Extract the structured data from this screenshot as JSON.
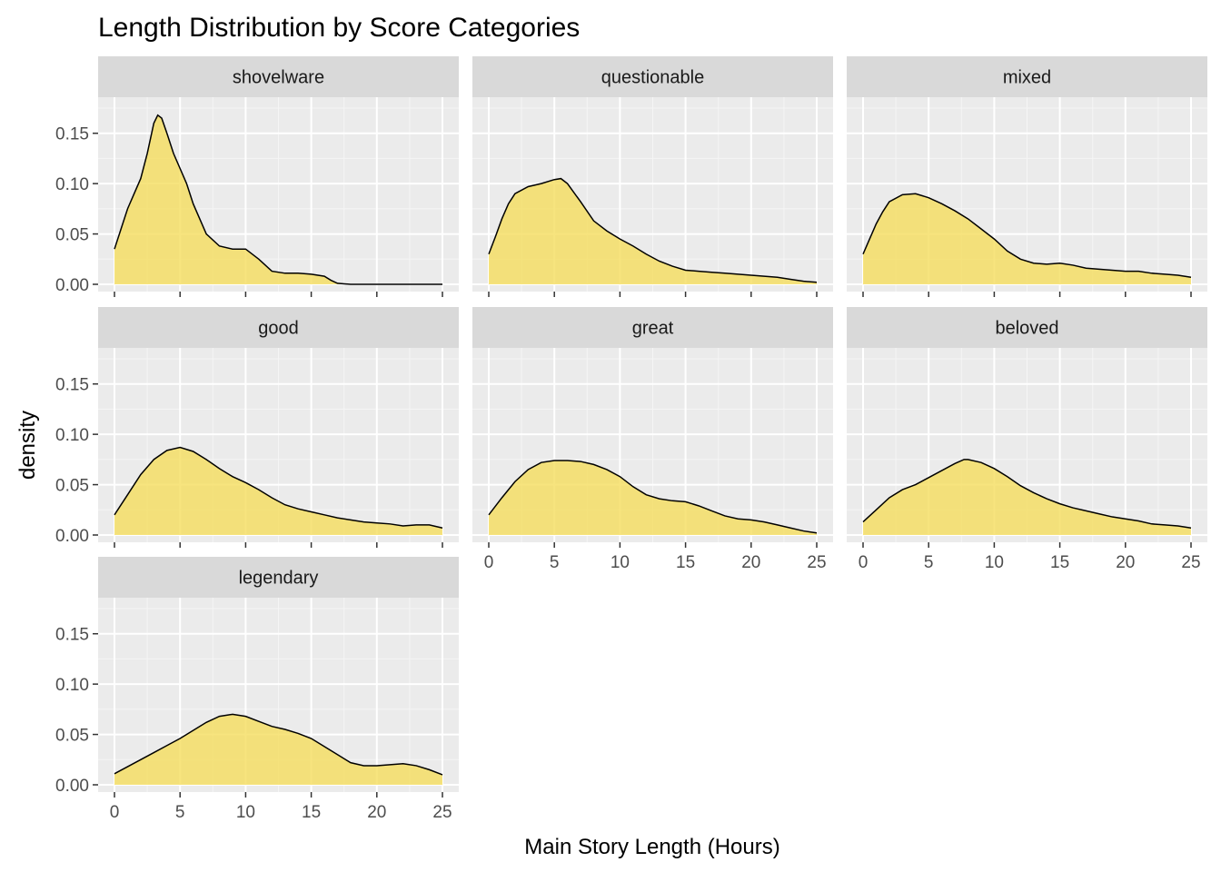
{
  "chart_data": {
    "type": "area",
    "title": "Length Distribution by Score Categories",
    "xlabel": "Main Story Length (Hours)",
    "ylabel": "density",
    "xlim": [
      0,
      25
    ],
    "ylim": [
      0,
      0.175
    ],
    "x_ticks": [
      0,
      5,
      10,
      15,
      20,
      25
    ],
    "y_ticks": [
      0,
      0.05,
      0.1,
      0.15
    ],
    "y_tick_labels": [
      "0.00",
      "0.05",
      "0.10",
      "0.15"
    ],
    "grid": true,
    "fill_color": "#F5DD5E",
    "fill_opacity": 0.8,
    "line_color": "#000000",
    "panel_background": "#EBEBEB",
    "strip_background": "#D9D9D9",
    "panels": [
      {
        "name": "shovelware",
        "x": [
          0,
          0.5,
          1,
          1.5,
          2,
          2.5,
          3,
          3.3,
          3.6,
          4,
          4.5,
          5,
          5.5,
          6,
          7,
          8,
          9,
          10,
          11,
          12,
          13,
          14,
          15,
          16,
          16.5,
          17,
          18,
          20,
          22,
          25
        ],
        "y": [
          0.035,
          0.055,
          0.075,
          0.09,
          0.105,
          0.13,
          0.16,
          0.168,
          0.165,
          0.15,
          0.13,
          0.115,
          0.1,
          0.08,
          0.05,
          0.038,
          0.035,
          0.035,
          0.025,
          0.013,
          0.011,
          0.011,
          0.01,
          0.008,
          0.004,
          0.001,
          0.0,
          0.0,
          0.0,
          0.0
        ]
      },
      {
        "name": "questionable",
        "x": [
          0,
          0.5,
          1,
          1.5,
          2,
          3,
          4,
          5,
          5.5,
          6,
          7,
          8,
          9,
          10,
          11,
          12,
          13,
          14,
          15,
          16,
          17,
          18,
          19,
          20,
          21,
          22,
          23,
          24,
          25
        ],
        "y": [
          0.03,
          0.047,
          0.065,
          0.08,
          0.09,
          0.097,
          0.1,
          0.104,
          0.105,
          0.1,
          0.082,
          0.063,
          0.053,
          0.045,
          0.038,
          0.03,
          0.023,
          0.018,
          0.014,
          0.013,
          0.012,
          0.011,
          0.01,
          0.009,
          0.008,
          0.007,
          0.005,
          0.003,
          0.002
        ]
      },
      {
        "name": "mixed",
        "x": [
          0,
          0.5,
          1,
          1.5,
          2,
          3,
          4,
          5,
          6,
          7,
          8,
          9,
          10,
          11,
          12,
          13,
          14,
          15,
          16,
          17,
          18,
          19,
          20,
          21,
          22,
          23,
          24,
          25
        ],
        "y": [
          0.03,
          0.045,
          0.06,
          0.072,
          0.082,
          0.089,
          0.09,
          0.086,
          0.08,
          0.073,
          0.065,
          0.055,
          0.045,
          0.033,
          0.025,
          0.021,
          0.02,
          0.021,
          0.019,
          0.016,
          0.015,
          0.014,
          0.013,
          0.013,
          0.011,
          0.01,
          0.009,
          0.007
        ]
      },
      {
        "name": "good",
        "x": [
          0,
          1,
          2,
          3,
          4,
          5,
          6,
          7,
          8,
          9,
          10,
          11,
          12,
          13,
          14,
          15,
          16,
          17,
          18,
          19,
          20,
          21,
          22,
          23,
          24,
          25
        ],
        "y": [
          0.02,
          0.04,
          0.06,
          0.075,
          0.084,
          0.087,
          0.083,
          0.075,
          0.066,
          0.058,
          0.052,
          0.045,
          0.037,
          0.03,
          0.026,
          0.023,
          0.02,
          0.017,
          0.015,
          0.013,
          0.012,
          0.011,
          0.009,
          0.01,
          0.01,
          0.007
        ]
      },
      {
        "name": "great",
        "x": [
          0,
          1,
          2,
          3,
          4,
          5,
          6,
          7,
          8,
          9,
          10,
          11,
          12,
          13,
          14,
          15,
          16,
          17,
          18,
          19,
          20,
          21,
          22,
          23,
          24,
          25
        ],
        "y": [
          0.02,
          0.037,
          0.053,
          0.065,
          0.072,
          0.074,
          0.074,
          0.073,
          0.07,
          0.065,
          0.058,
          0.048,
          0.04,
          0.036,
          0.034,
          0.033,
          0.029,
          0.024,
          0.019,
          0.016,
          0.015,
          0.013,
          0.01,
          0.007,
          0.004,
          0.002
        ]
      },
      {
        "name": "beloved",
        "x": [
          0,
          1,
          2,
          3,
          4,
          5,
          6,
          7,
          7.7,
          8,
          9,
          10,
          11,
          12,
          13,
          14,
          15,
          16,
          17,
          18,
          19,
          20,
          21,
          22,
          23,
          24,
          25
        ],
        "y": [
          0.013,
          0.025,
          0.037,
          0.045,
          0.05,
          0.057,
          0.064,
          0.071,
          0.075,
          0.075,
          0.072,
          0.066,
          0.058,
          0.049,
          0.042,
          0.036,
          0.031,
          0.027,
          0.024,
          0.021,
          0.018,
          0.016,
          0.014,
          0.011,
          0.01,
          0.009,
          0.007
        ]
      },
      {
        "name": "legendary",
        "x": [
          0,
          1,
          2,
          3,
          4,
          5,
          6,
          7,
          8,
          9,
          10,
          11,
          12,
          13,
          14,
          15,
          16,
          17,
          18,
          19,
          20,
          21,
          22,
          23,
          24,
          25
        ],
        "y": [
          0.011,
          0.018,
          0.025,
          0.032,
          0.039,
          0.046,
          0.054,
          0.062,
          0.068,
          0.07,
          0.068,
          0.063,
          0.058,
          0.055,
          0.051,
          0.046,
          0.038,
          0.03,
          0.022,
          0.019,
          0.019,
          0.02,
          0.021,
          0.019,
          0.015,
          0.01
        ]
      }
    ]
  }
}
